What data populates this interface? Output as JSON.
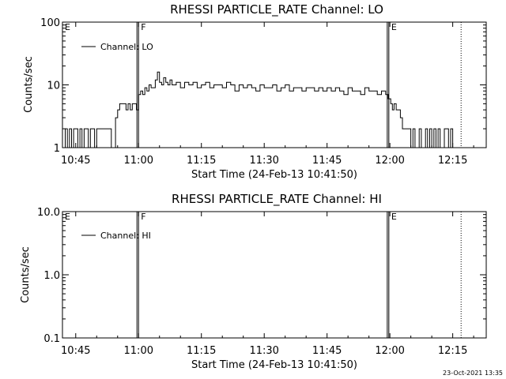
{
  "chart_data": [
    {
      "type": "line",
      "title": "RHESSI PARTICLE_RATE Channel: LO",
      "xlabel": "Start Time (24-Feb-13 10:41:50)",
      "ylabel": "Counts/sec",
      "yscale": "log",
      "ylim": [
        1,
        100
      ],
      "xlim": [
        "10:41:50",
        "12:23:00"
      ],
      "x_tick_labels": [
        "10:45",
        "11:00",
        "11:15",
        "11:30",
        "11:45",
        "12:00",
        "12:15"
      ],
      "x_ticks_min": [
        45,
        60,
        75,
        90,
        105,
        120,
        135
      ],
      "y_tick_labels": [
        "1",
        "10",
        "100"
      ],
      "y_ticks": [
        1,
        10,
        100
      ],
      "legend": {
        "label": "Channel: LO",
        "placement": "top-left"
      },
      "markers": [
        {
          "label": "E",
          "time": "10:41:50",
          "minute": 41.83,
          "style": "solid"
        },
        {
          "label": "F",
          "time": "11:00",
          "minute": 60.0,
          "style": "solid"
        },
        {
          "label": "E",
          "time": "11:59:45",
          "minute": 119.75,
          "style": "solid"
        },
        {
          "label": "",
          "time": "12:17",
          "minute": 137.0,
          "style": "dotted"
        }
      ],
      "series": [
        {
          "minutes": [
            42,
            42.5,
            43,
            43.5,
            44,
            44.5,
            45,
            45.5,
            46,
            46.5,
            47,
            47.5,
            48,
            48.5,
            49,
            49.5,
            50,
            50.5,
            51,
            51.5,
            52,
            52.5,
            53,
            53.5,
            54,
            54.5,
            55,
            55.5,
            56,
            56.5,
            57,
            57.5,
            58,
            58.5,
            59,
            59.5,
            60,
            60.5,
            61,
            61.5,
            62,
            62.5,
            63,
            63.5,
            64,
            64.5,
            65,
            65.5,
            66,
            66.5,
            67,
            67.5,
            68,
            69,
            70,
            71,
            72,
            73,
            74,
            75,
            76,
            77,
            78,
            79,
            80,
            81,
            82,
            83,
            84,
            85,
            86,
            87,
            88,
            89,
            90,
            91,
            92,
            93,
            94,
            95,
            96,
            97,
            98,
            99,
            100,
            101,
            102,
            103,
            104,
            105,
            106,
            107,
            108,
            109,
            110,
            111,
            112,
            113,
            114,
            115,
            116,
            117,
            118,
            119,
            119.6,
            120.2,
            120.6,
            121,
            121.5,
            122,
            122.5,
            123,
            123.5,
            124,
            124.5,
            125,
            125.5,
            126,
            126.5,
            127,
            127.5,
            128,
            128.5,
            129,
            129.5,
            130,
            130.5,
            131,
            131.5,
            132,
            132.5,
            133,
            133.5,
            134,
            134.5,
            135,
            135.5,
            136,
            136.5,
            137
          ],
          "counts": [
            1,
            2,
            1,
            2,
            1,
            2,
            2,
            1,
            2,
            1,
            2,
            2,
            1,
            2,
            2,
            1,
            2,
            2,
            2,
            2,
            2,
            2,
            2,
            1,
            1,
            3,
            4,
            5,
            5,
            5,
            4,
            5,
            4,
            5,
            5,
            4,
            7,
            8,
            7,
            9,
            8,
            10,
            9,
            9,
            12,
            16,
            11,
            10,
            13,
            11,
            10,
            12,
            10,
            11,
            9,
            11,
            10,
            11,
            9,
            10,
            11,
            9,
            10,
            10,
            9,
            11,
            10,
            8,
            10,
            9,
            10,
            9,
            8,
            10,
            9,
            9,
            10,
            8,
            9,
            10,
            8,
            9,
            9,
            8,
            9,
            9,
            8,
            9,
            8,
            9,
            8,
            9,
            8,
            7,
            9,
            8,
            8,
            7,
            9,
            8,
            8,
            7,
            8,
            7,
            6,
            5,
            4,
            5,
            4,
            4,
            3,
            2,
            2,
            2,
            2,
            1,
            2,
            1,
            1,
            2,
            1,
            1,
            2,
            1,
            2,
            1,
            2,
            1,
            2,
            1,
            1,
            2,
            2,
            1,
            2,
            1,
            1,
            1
          ]
        }
      ]
    },
    {
      "type": "line",
      "title": "RHESSI PARTICLE_RATE Channel: HI",
      "xlabel": "Start Time (24-Feb-13 10:41:50)",
      "ylabel": "Counts/sec",
      "yscale": "log",
      "ylim": [
        0.1,
        10
      ],
      "xlim": [
        "10:41:50",
        "12:23:00"
      ],
      "x_tick_labels": [
        "10:45",
        "11:00",
        "11:15",
        "11:30",
        "11:45",
        "12:00",
        "12:15"
      ],
      "x_ticks_min": [
        45,
        60,
        75,
        90,
        105,
        120,
        135
      ],
      "y_tick_labels": [
        "0.1",
        "1.0",
        "10.0"
      ],
      "y_ticks": [
        0.1,
        1,
        10
      ],
      "legend": {
        "label": "Channel: HI",
        "placement": "top-left"
      },
      "markers": [
        {
          "label": "E",
          "time": "10:41:50",
          "minute": 41.83,
          "style": "solid"
        },
        {
          "label": "F",
          "time": "11:00",
          "minute": 60.0,
          "style": "solid"
        },
        {
          "label": "E",
          "time": "11:59:45",
          "minute": 119.75,
          "style": "solid"
        },
        {
          "label": "",
          "time": "12:17",
          "minute": 137.0,
          "style": "dotted"
        }
      ],
      "series": [
        {
          "minutes": [],
          "counts": []
        }
      ]
    }
  ],
  "footer": {
    "timestamp": "23-Oct-2021 13:35"
  }
}
